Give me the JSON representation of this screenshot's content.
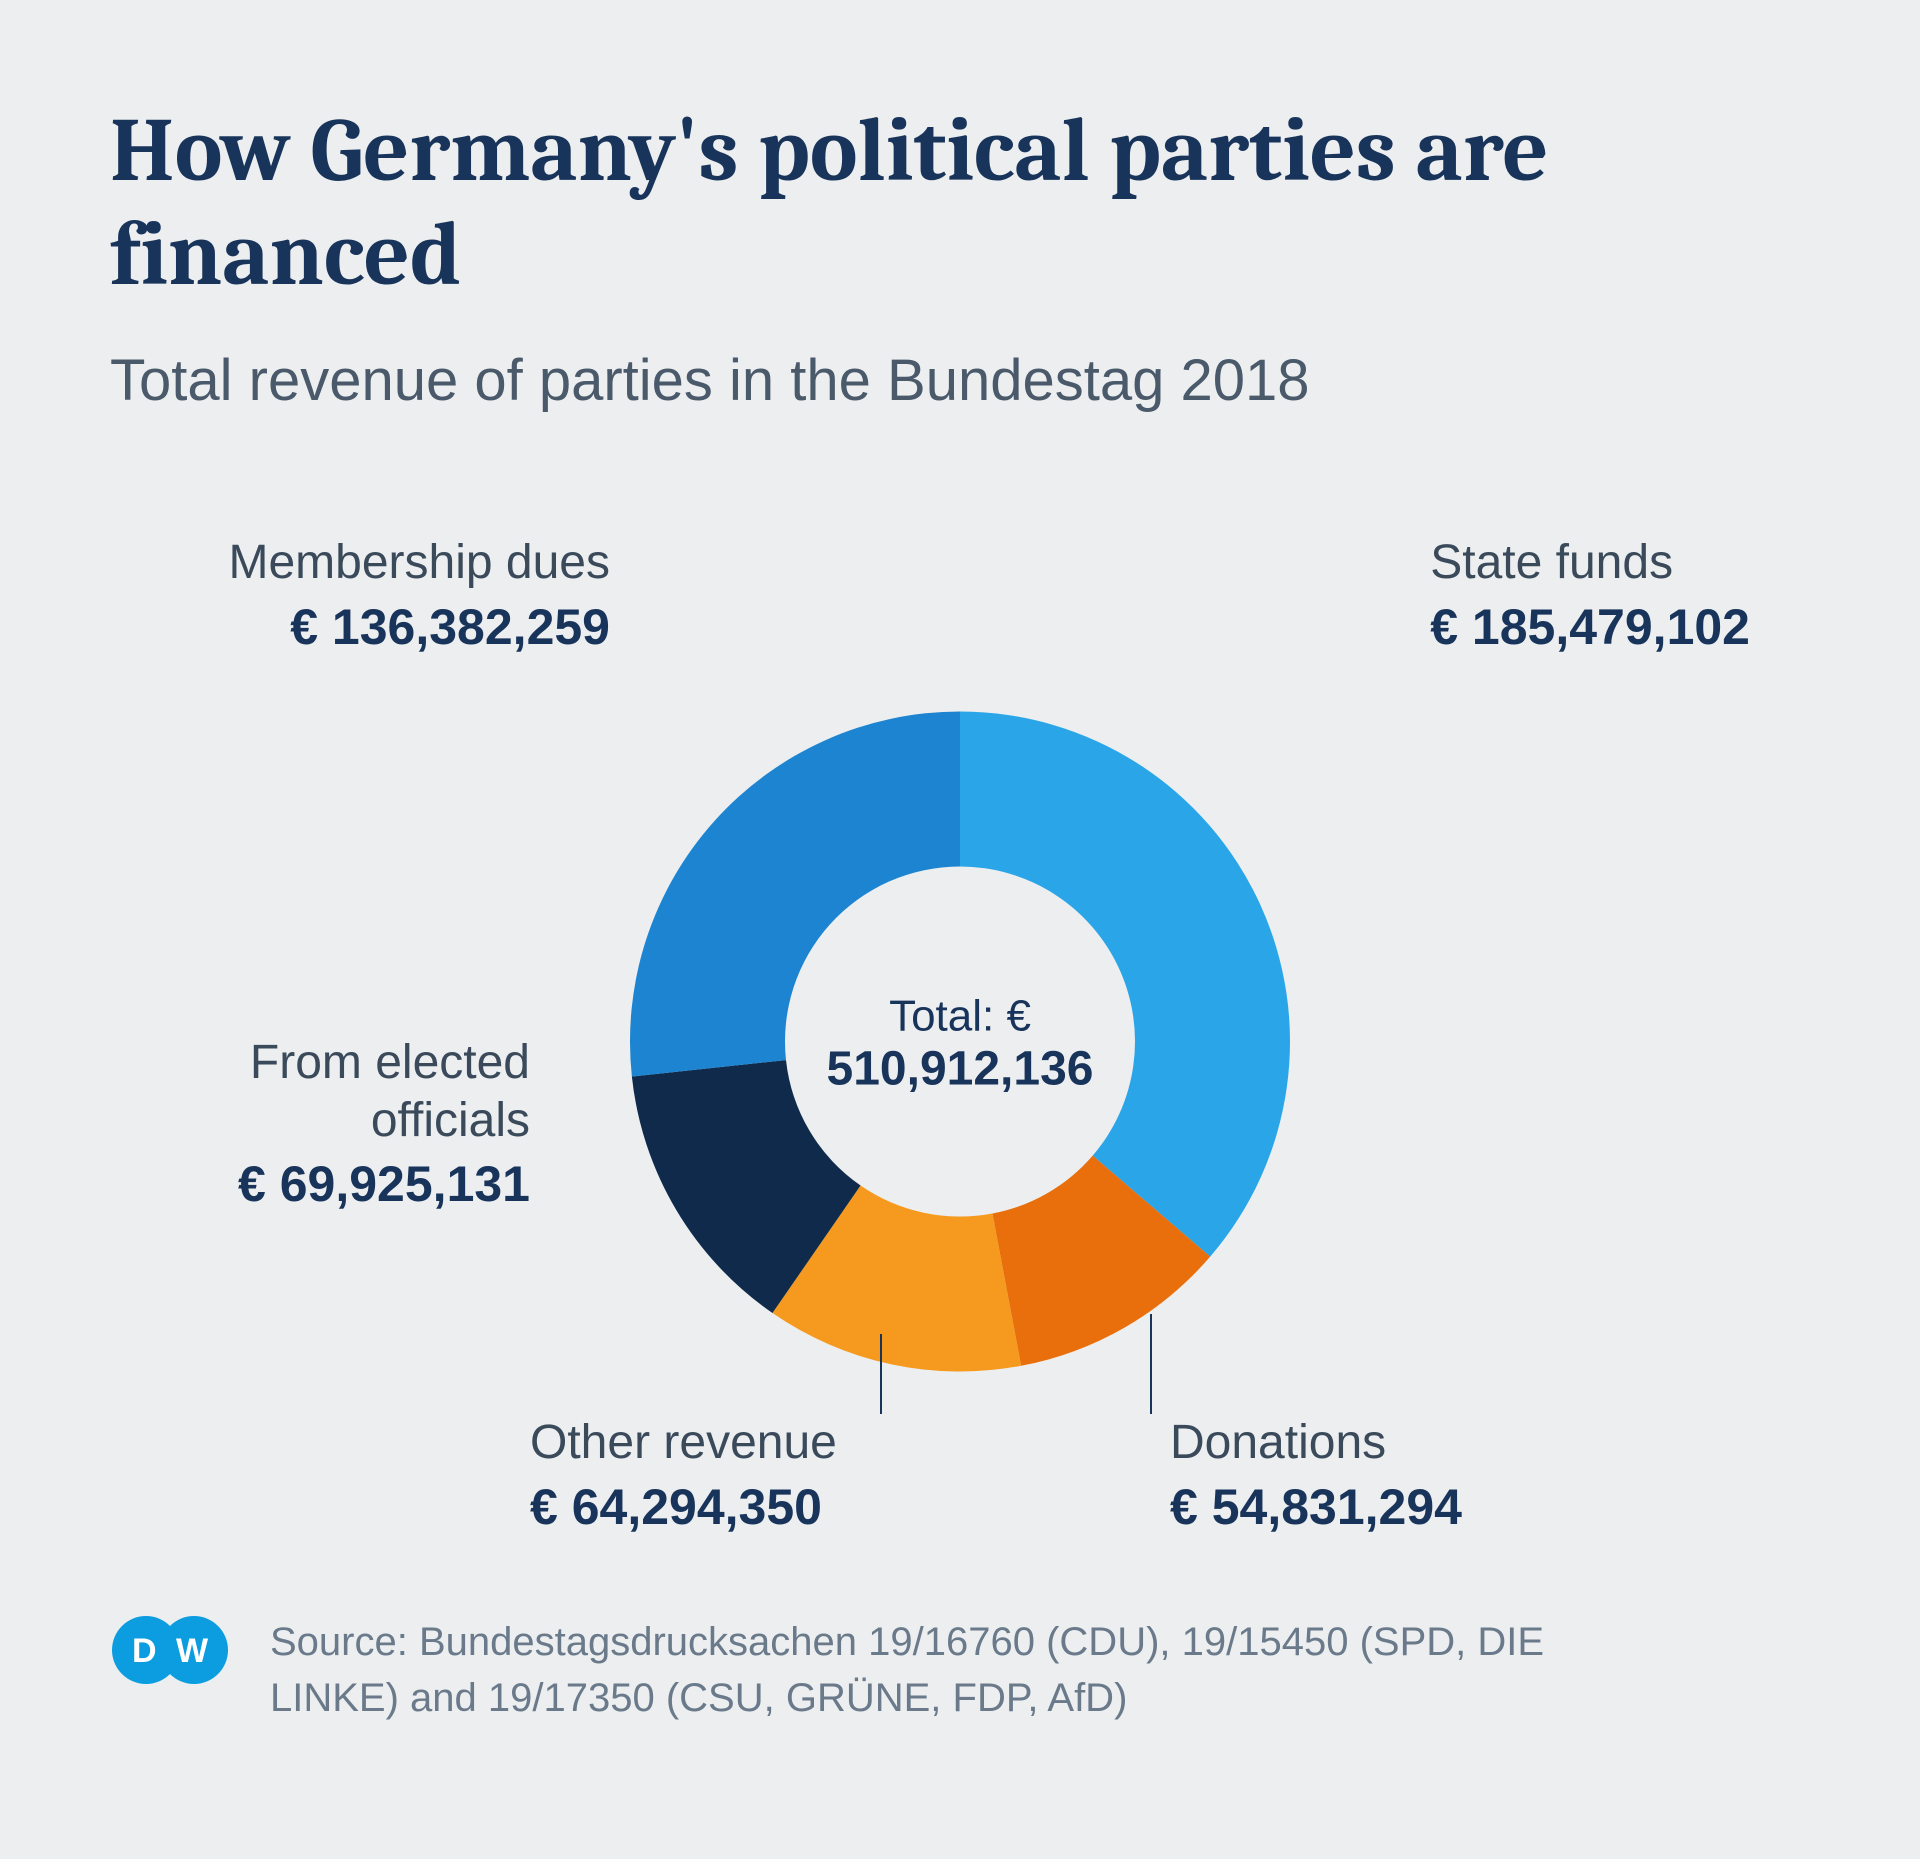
{
  "title": "How Germany's political parties are financed",
  "subtitle": "Total revenue of parties in the Bundestag 2018",
  "chart": {
    "type": "donut",
    "outer_radius": 330,
    "inner_radius": 175,
    "background_color": "#eceef0",
    "center_label_prefix": "Total: €",
    "center_value": "510,912,136",
    "segments": [
      {
        "label": "State funds",
        "value_text": "€ 185,479,102",
        "value": 185479102,
        "color": "#2aa6e8"
      },
      {
        "label": "Donations",
        "value_text": "€ 54,831,294",
        "value": 54831294,
        "color": "#e86f0c"
      },
      {
        "label": "Other revenue",
        "value_text": "€ 64,294,350",
        "value": 64294350,
        "color": "#f59a1e"
      },
      {
        "label": "From elected officials",
        "value_text": "€ 69,925,131",
        "value": 69925131,
        "color": "#0f2a4a"
      },
      {
        "label": "Membership dues",
        "value_text": "€ 136,382,259",
        "value": 136382259,
        "color": "#1c84d0"
      }
    ]
  },
  "source_text": "Source: Bundestagsdrucksachen 19/16760 (CDU), 19/15450 (SPD, DIE LINKE) and 19/17350 (CSU, GRÜNE, FDP, AfD)",
  "logo": {
    "text": "DW",
    "bg": "#0b9de0",
    "fg": "#ffffff"
  },
  "typography": {
    "title_fontsize": 90,
    "subtitle_fontsize": 58,
    "label_fontsize": 48,
    "value_fontsize": 50,
    "source_fontsize": 40
  }
}
